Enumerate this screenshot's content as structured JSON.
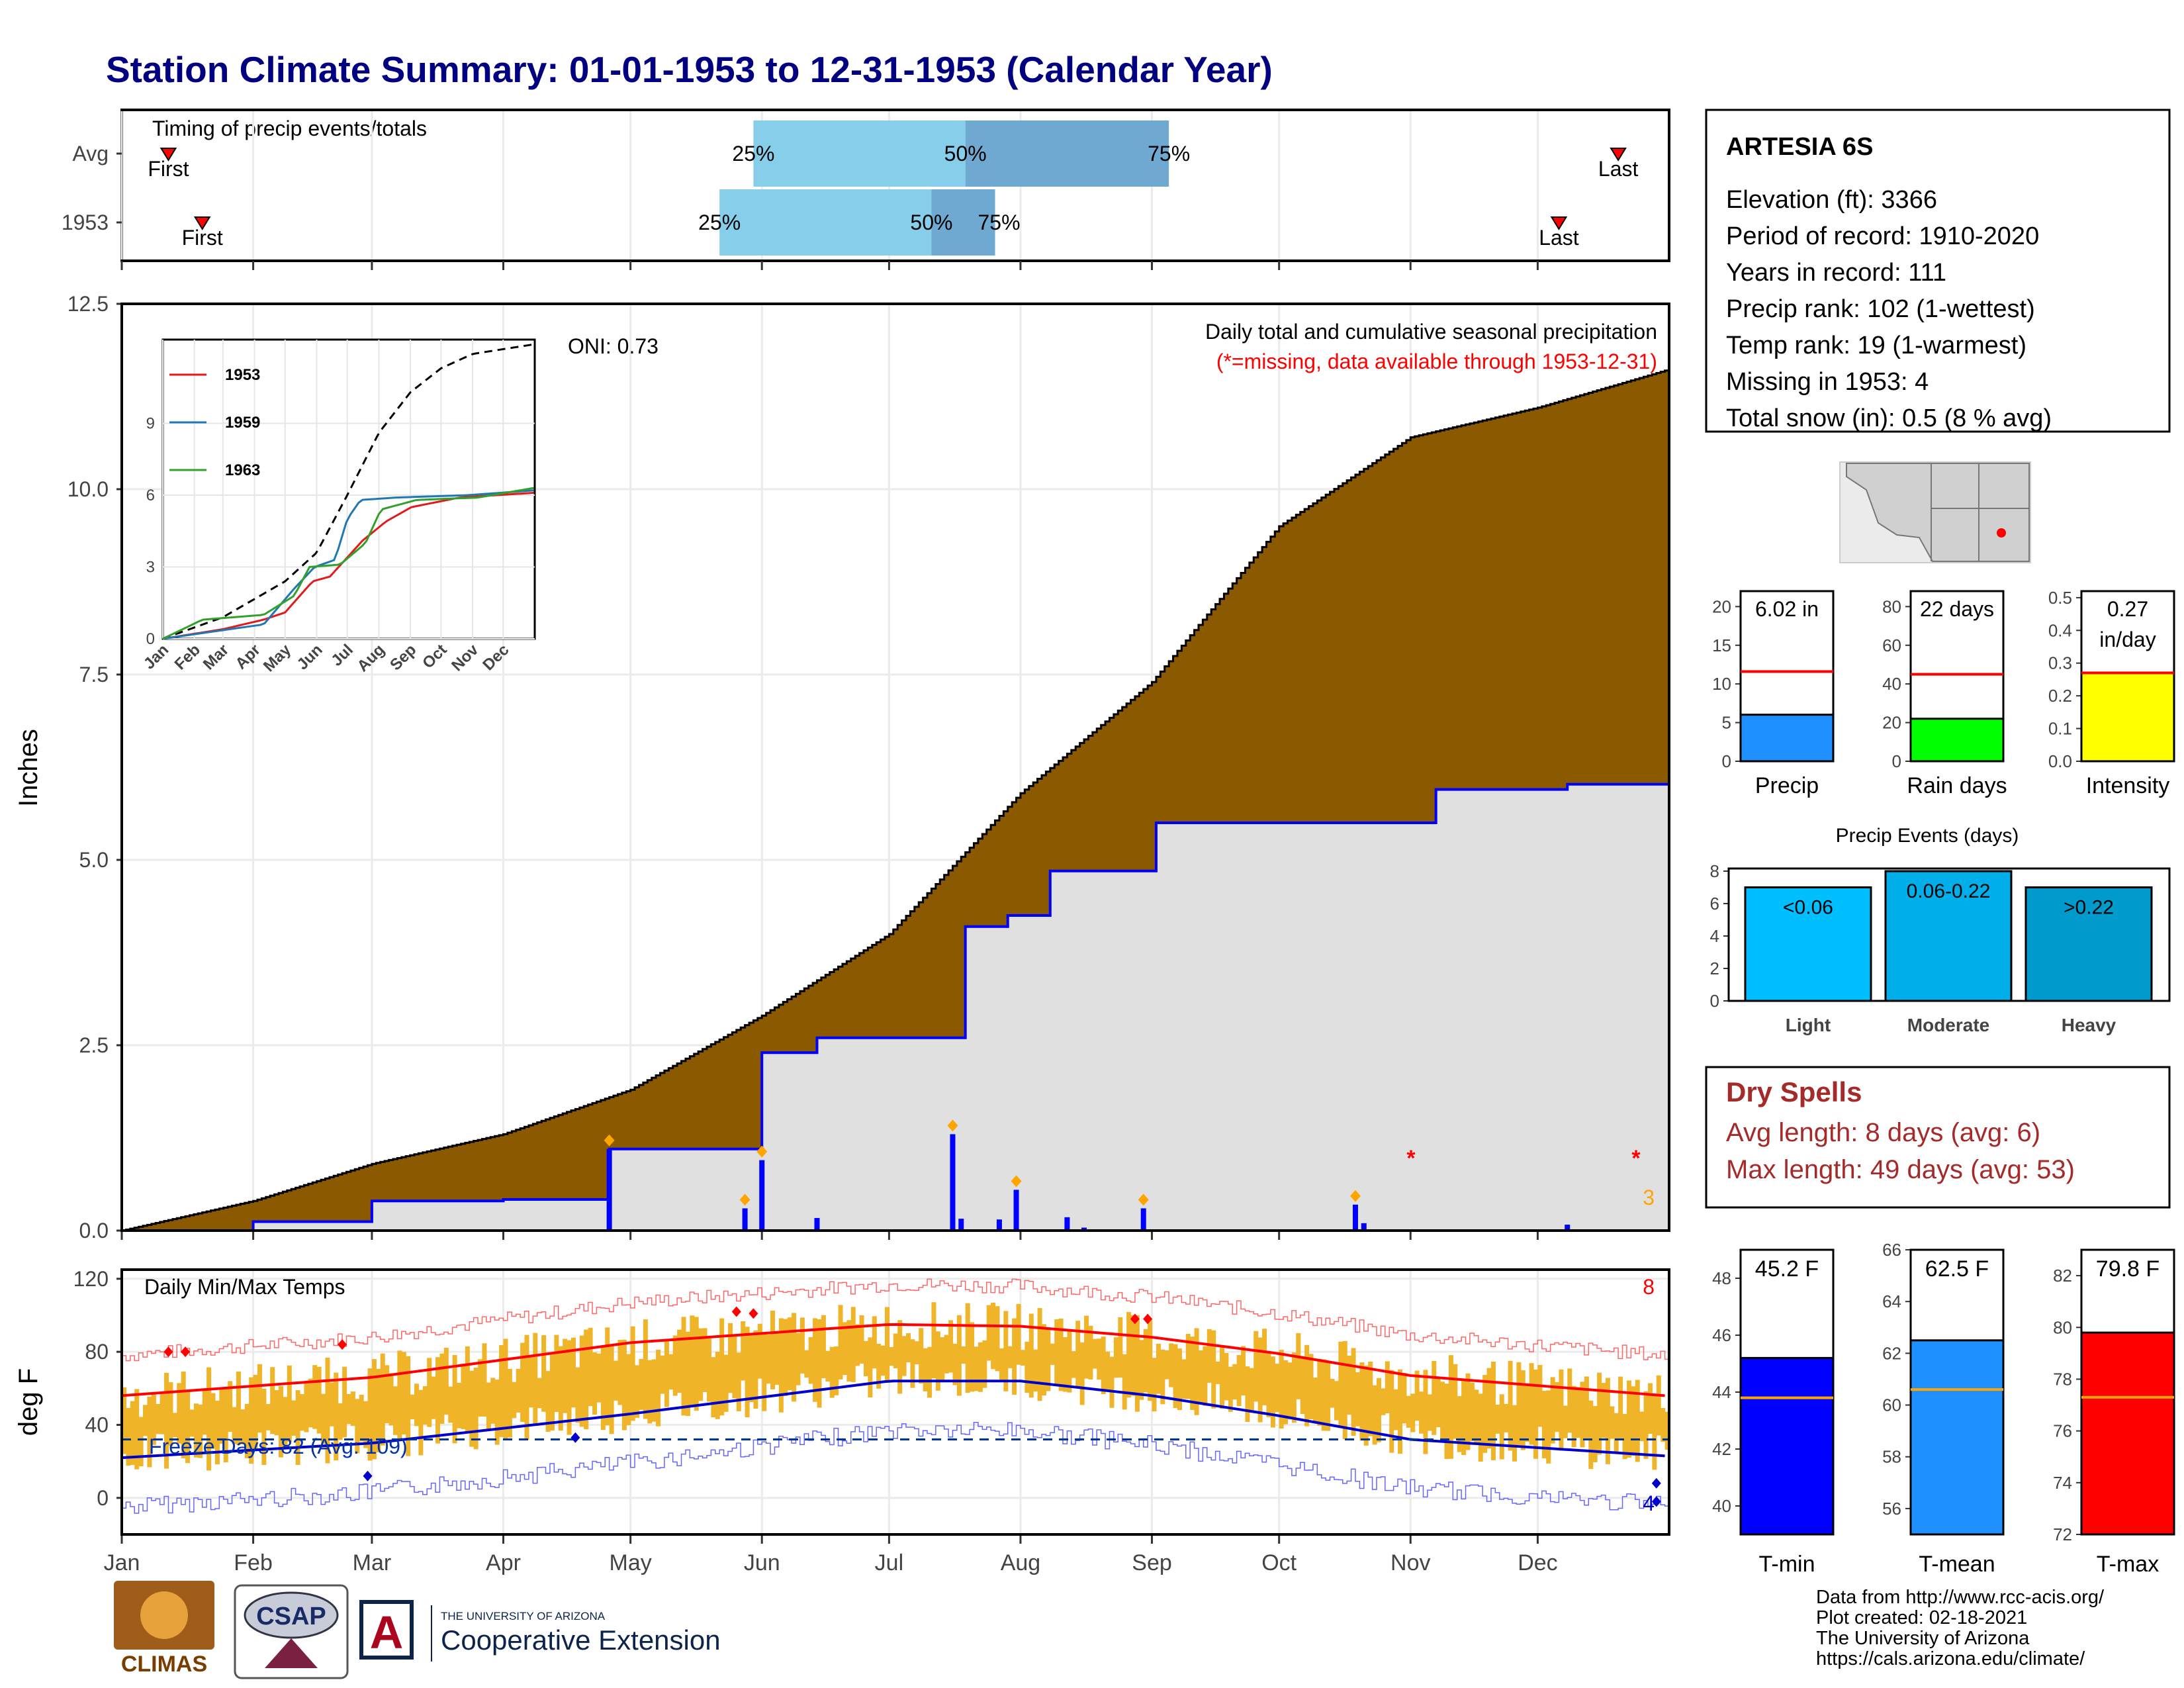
{
  "title": "Station Climate Summary: 01-01-1953 to 12-31-1953 (Calendar Year)",
  "months": [
    "Jan",
    "Feb",
    "Mar",
    "Apr",
    "May",
    "Jun",
    "Jul",
    "Aug",
    "Sep",
    "Oct",
    "Nov",
    "Dec"
  ],
  "timing": {
    "title": "Timing of precip events/totals",
    "rows": [
      {
        "label": "Avg",
        "first_label": "First",
        "last_label": "Last",
        "first_doy": 12,
        "last_doy": 354,
        "p25": 150,
        "p50": 200,
        "p75": 248,
        "t25": "25%",
        "t50": "50%",
        "t75": "75%"
      },
      {
        "label": "1953",
        "first_label": "First",
        "last_label": "Last",
        "first_doy": 20,
        "last_doy": 340,
        "p25": 142,
        "p50": 192,
        "p75": 207,
        "t25": "25%",
        "t50": "50%",
        "t75": "75%"
      }
    ]
  },
  "precip": {
    "ylabel": "Inches",
    "yticks": [
      "0.0",
      "2.5",
      "5.0",
      "7.5",
      "10.0",
      "12.5"
    ],
    "oni": "ONI: 0.73",
    "subtitle": "Daily total and cumulative seasonal precipitation",
    "missing_note": "(*=missing, data available through 1953-12-31)",
    "missing_count": "3",
    "colors": {
      "avg_fill": "#8B5A00",
      "obs_fill": "#e0e0e0",
      "obs_line": "#0000ff",
      "bars": "#0000ff",
      "marker": "#ffa500",
      "missing": "#ff0000"
    }
  },
  "inset": {
    "yticks": [
      "0",
      "3",
      "6",
      "9"
    ],
    "months": [
      "Jan",
      "Feb",
      "Mar",
      "Apr",
      "May",
      "Jun",
      "Jul",
      "Aug",
      "Sep",
      "Oct",
      "Nov",
      "Dec"
    ],
    "legend": [
      {
        "name": "1953",
        "color": "#e31a1c"
      },
      {
        "name": "1959",
        "color": "#1f78b4"
      },
      {
        "name": "1963",
        "color": "#33a02c"
      }
    ]
  },
  "temps": {
    "ylabel": "deg F",
    "title": "Daily Min/Max Temps",
    "yticks": [
      "0",
      "40",
      "80",
      "120"
    ],
    "freeze_text": "Freeze Days: 82 (Avg: 109)",
    "hot_count": "8",
    "cold_count": "4"
  },
  "station": {
    "name": "ARTESIA 6S",
    "lines": [
      "Elevation (ft): 3366",
      "Period of record: 1910-2020",
      "Years in record: 111",
      "Precip rank: 102 (1-wettest)",
      "Temp rank: 19 (1-warmest)",
      "Missing in 1953: 4",
      "Total snow (in): 0.5 (8 % avg)"
    ]
  },
  "mini_bars": [
    {
      "label": "Precip",
      "value_text": "6.02 in",
      "value": 6.02,
      "avg": 11.6,
      "ylim": [
        0,
        22
      ],
      "yticks": [
        "0",
        "5",
        "10",
        "15",
        "20"
      ],
      "tickvals": [
        0,
        5,
        10,
        15,
        20
      ],
      "color": "#1e90ff"
    },
    {
      "label": "Rain days",
      "value_text": "22 days",
      "value": 22,
      "avg": 45,
      "ylim": [
        0,
        88
      ],
      "yticks": [
        "0",
        "20",
        "40",
        "60",
        "80"
      ],
      "tickvals": [
        0,
        20,
        40,
        60,
        80
      ],
      "color": "#00ff00"
    },
    {
      "label": "Intensity",
      "value_text": "0.27",
      "value_text2": "in/day",
      "value": 0.27,
      "avg": 0.27,
      "ylim": [
        0,
        0.52
      ],
      "yticks": [
        "0.0",
        "0.1",
        "0.2",
        "0.3",
        "0.4",
        "0.5"
      ],
      "tickvals": [
        0,
        0.1,
        0.2,
        0.3,
        0.4,
        0.5
      ],
      "color": "#ffff00"
    }
  ],
  "events": {
    "title": "Precip Events (days)",
    "yticks": [
      "0",
      "2",
      "4",
      "6",
      "8"
    ],
    "bars": [
      {
        "name": "Light",
        "label": "<0.06",
        "value": 7,
        "color": "#00bfff"
      },
      {
        "name": "Moderate",
        "label": "0.06-0.22",
        "value": 8,
        "color": "#00aeea"
      },
      {
        "name": "Heavy",
        "label": ">0.22",
        "value": 7,
        "color": "#009acd"
      }
    ]
  },
  "dry_spells": {
    "title": "Dry Spells",
    "avg_line": "Avg length: 8 days (avg: 6)",
    "max_line": "Max length: 49 days (avg: 53)"
  },
  "temp_bars": [
    {
      "label": "T-min",
      "value_text": "45.2 F",
      "value": 45.2,
      "avg": 43.8,
      "ylim": [
        39,
        49
      ],
      "yticks": [
        "40",
        "42",
        "44",
        "46",
        "48"
      ],
      "tickvals": [
        40,
        42,
        44,
        46,
        48
      ],
      "color": "#0000ff"
    },
    {
      "label": "T-mean",
      "value_text": "62.5 F",
      "value": 62.5,
      "avg": 60.6,
      "ylim": [
        55,
        66
      ],
      "yticks": [
        "56",
        "58",
        "60",
        "62",
        "64",
        "66"
      ],
      "tickvals": [
        56,
        58,
        60,
        62,
        64,
        66
      ],
      "color": "#1e90ff"
    },
    {
      "label": "T-max",
      "value_text": "79.8 F",
      "value": 79.8,
      "avg": 77.3,
      "ylim": [
        72,
        83
      ],
      "yticks": [
        "72",
        "74",
        "76",
        "78",
        "80",
        "82"
      ],
      "tickvals": [
        72,
        74,
        76,
        78,
        80,
        82
      ],
      "color": "#ff0000"
    }
  ],
  "footer": {
    "lines": [
      "Data from http://www.rcc-acis.org/",
      "Plot created: 02-18-2021",
      "The University of Arizona",
      "https://cals.arizona.edu/climate/"
    ],
    "logo_climas": "CLIMAS",
    "logo_csap": "CSAP",
    "logo_ua_small": "THE UNIVERSITY OF ARIZONA",
    "logo_ua_big": "Cooperative Extension"
  },
  "chart_data": {
    "type": "area",
    "title": "Station Climate Summary: 01-01-1953 to 12-31-1953 (Calendar Year)",
    "ylabel": "Inches",
    "xlabel": "",
    "ylim": [
      0,
      12.5
    ],
    "x_unit": "day of year",
    "series": [
      {
        "name": "Daily total and cumulative seasonal precipitation",
        "x": [
          1,
          32,
          60,
          91,
          115,
          116,
          140,
          148,
          152,
          165,
          197,
          200,
          210,
          220,
          245,
          274,
          311,
          342,
          365
        ],
        "values": [
          0,
          0.12,
          0.4,
          0.42,
          0.42,
          1.1,
          1.1,
          1.1,
          2.4,
          2.6,
          2.6,
          4.1,
          4.25,
          4.85,
          5.5,
          5.5,
          5.95,
          6.02,
          6.02
        ]
      },
      {
        "name": "Avg cumulative",
        "x": [
          1,
          32,
          60,
          91,
          121,
          152,
          182,
          213,
          244,
          274,
          305,
          335,
          365
        ],
        "values": [
          0,
          0.4,
          0.9,
          1.3,
          1.9,
          2.9,
          4.0,
          5.9,
          7.4,
          9.5,
          10.7,
          11.1,
          11.6
        ]
      }
    ],
    "daily_precip": [
      {
        "x": 116,
        "v": 1.1
      },
      {
        "x": 148,
        "v": 0.3
      },
      {
        "x": 152,
        "v": 0.95
      },
      {
        "x": 165,
        "v": 0.17
      },
      {
        "x": 197,
        "v": 1.3
      },
      {
        "x": 199,
        "v": 0.16
      },
      {
        "x": 208,
        "v": 0.15
      },
      {
        "x": 212,
        "v": 0.55
      },
      {
        "x": 224,
        "v": 0.18
      },
      {
        "x": 228,
        "v": 0.04
      },
      {
        "x": 242,
        "v": 0.3
      },
      {
        "x": 292,
        "v": 0.35
      },
      {
        "x": 294,
        "v": 0.1
      },
      {
        "x": 342,
        "v": 0.08
      }
    ],
    "temps": {
      "normal_max": [
        {
          "x": 1,
          "v": 56
        },
        {
          "x": 60,
          "v": 66
        },
        {
          "x": 121,
          "v": 85
        },
        {
          "x": 182,
          "v": 95
        },
        {
          "x": 213,
          "v": 94
        },
        {
          "x": 244,
          "v": 88
        },
        {
          "x": 274,
          "v": 79
        },
        {
          "x": 305,
          "v": 67
        },
        {
          "x": 365,
          "v": 56
        }
      ],
      "normal_min": [
        {
          "x": 1,
          "v": 22
        },
        {
          "x": 60,
          "v": 30
        },
        {
          "x": 121,
          "v": 46
        },
        {
          "x": 182,
          "v": 64
        },
        {
          "x": 213,
          "v": 64
        },
        {
          "x": 244,
          "v": 56
        },
        {
          "x": 274,
          "v": 45
        },
        {
          "x": 305,
          "v": 32
        },
        {
          "x": 365,
          "v": 23
        }
      ],
      "freeze_line": 32
    }
  }
}
